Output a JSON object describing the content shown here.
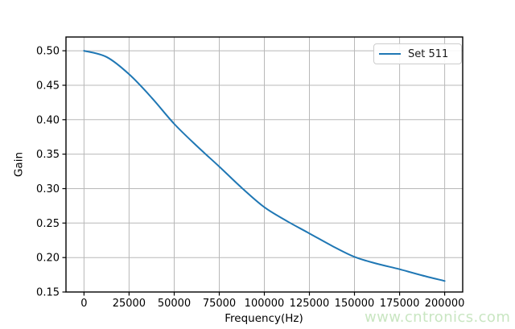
{
  "watermark": "www.cntronics.com",
  "colors": {
    "line": "#1f77b4",
    "grid": "#b8b8b8",
    "spine": "#000000",
    "tick_text": "#000000",
    "watermark": "#c9e6c2",
    "legend_border": "#cccccc"
  },
  "legend": {
    "label": "Set 511",
    "position": "upper right"
  },
  "chart_data": {
    "type": "line",
    "title": "",
    "xlabel": "Frequency(Hz)",
    "ylabel": "Gain",
    "grid": true,
    "legend_entries": [
      "Set 511"
    ],
    "legend_position": "upper right",
    "xlim": [
      -10000,
      210000
    ],
    "ylim": [
      0.15,
      0.52
    ],
    "x_ticks": [
      0,
      25000,
      50000,
      75000,
      100000,
      125000,
      150000,
      175000,
      200000
    ],
    "x_tick_labels": [
      "0",
      "25000",
      "50000",
      "75000",
      "100000",
      "125000",
      "150000",
      "175000",
      "200000"
    ],
    "y_ticks": [
      0.15,
      0.2,
      0.25,
      0.3,
      0.35,
      0.4,
      0.45,
      0.5
    ],
    "y_tick_labels": [
      "0.15",
      "0.20",
      "0.25",
      "0.30",
      "0.35",
      "0.40",
      "0.45",
      "0.50"
    ],
    "series": [
      {
        "name": "Set 511",
        "color": "#1f77b4",
        "x": [
          0,
          12500,
          25000,
          37500,
          50000,
          62500,
          75000,
          87500,
          100000,
          112500,
          125000,
          137500,
          150000,
          162500,
          175000,
          187500,
          200000
        ],
        "y": [
          0.5,
          0.491,
          0.466,
          0.432,
          0.394,
          0.362,
          0.332,
          0.301,
          0.273,
          0.253,
          0.235,
          0.217,
          0.201,
          0.191,
          0.183,
          0.174,
          0.166
        ]
      }
    ]
  }
}
